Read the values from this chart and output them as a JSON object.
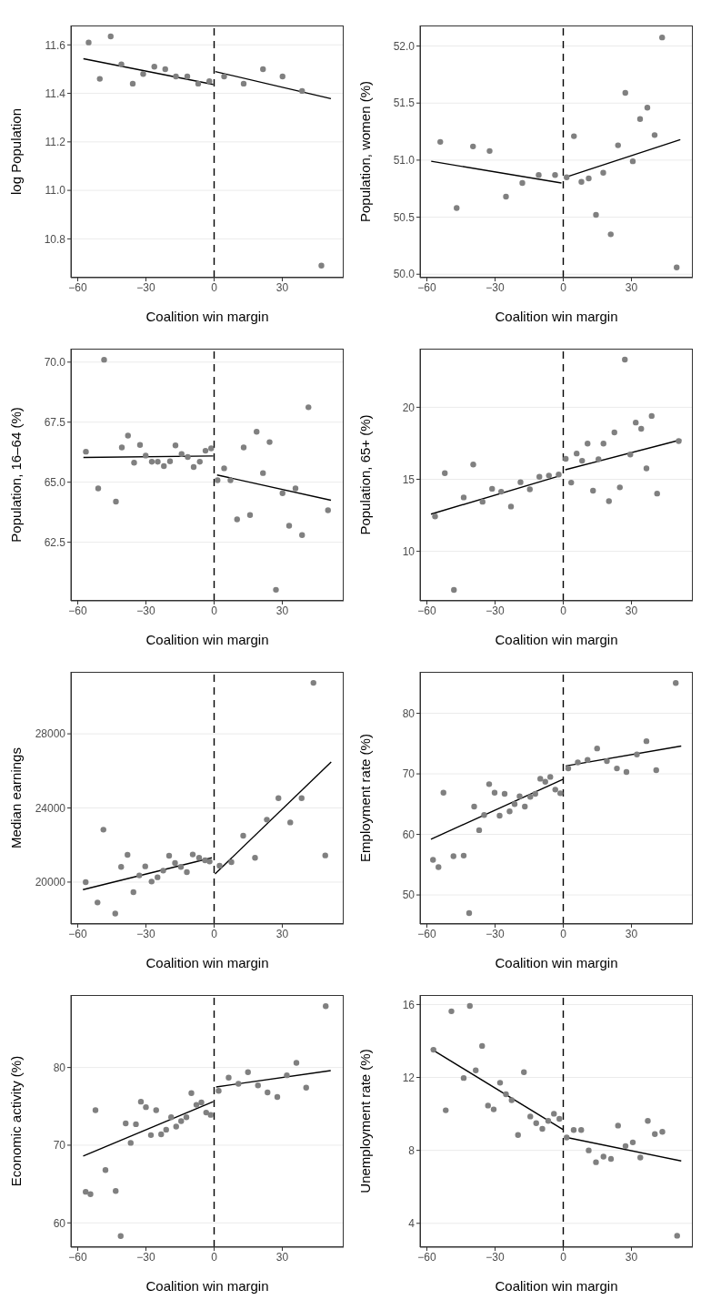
{
  "chart_data": [
    {
      "type": "scatter",
      "xlabel": "Coalition win margin",
      "ylabel": "log Population",
      "xlim": [
        -63,
        57
      ],
      "xticks": [
        -60,
        -30,
        0,
        30
      ],
      "ylim": [
        10.64,
        11.68
      ],
      "yticks": [
        10.8,
        {
          "value": 11,
          "label": "11.0"
        },
        11.2,
        11.4,
        11.6
      ],
      "grid": "y",
      "ref_lines": [
        {
          "axis": "x",
          "value": 0,
          "color": "#000000",
          "line_style": "dashed"
        }
      ],
      "series": [
        {
          "type": "scatter",
          "color": "#808080",
          "x": [
            -55.2,
            -50.3,
            -45.5,
            -40.8,
            -35.8,
            -31.2,
            -26.3,
            -21.5,
            -16.8,
            -11.8,
            -7.0,
            -2.1,
            4.4,
            13.0,
            21.5,
            30.1,
            38.7,
            47.2
          ],
          "values": [
            11.61,
            11.46,
            11.635,
            11.52,
            11.44,
            11.48,
            11.51,
            11.5,
            11.47,
            11.47,
            11.44,
            11.45,
            11.47,
            11.44,
            11.5,
            11.47,
            11.41,
            10.69
          ]
        },
        {
          "type": "line",
          "color": "#000000",
          "x": [
            -57.5,
            -0.4
          ],
          "values": [
            11.543,
            11.437
          ]
        },
        {
          "type": "line",
          "color": "#000000",
          "x": [
            0.5,
            51.4
          ],
          "values": [
            11.49,
            11.378
          ]
        }
      ]
    },
    {
      "type": "scatter",
      "xlabel": "Coalition win margin",
      "ylabel": "Population, women (%)",
      "xlim": [
        -63,
        57
      ],
      "xticks": [
        -60,
        -30,
        0,
        30
      ],
      "ylim": [
        49.97,
        52.18
      ],
      "yticks": [
        {
          "value": 50,
          "label": "50.0"
        },
        50.5,
        {
          "value": 51,
          "label": "51.0"
        },
        51.5,
        {
          "value": 52,
          "label": "52.0"
        }
      ],
      "grid": "y",
      "ref_lines": [
        {
          "axis": "x",
          "value": 0,
          "color": "#000000",
          "line_style": "dashed"
        }
      ],
      "series": [
        {
          "type": "scatter",
          "color": "#808080",
          "x": [
            -54.1,
            -46.9,
            -39.7,
            -32.4,
            -25.2,
            -18.0,
            -10.8,
            -3.6,
            1.5,
            4.7,
            8.0,
            11.2,
            14.4,
            17.6,
            20.9,
            24.1,
            27.3,
            30.6,
            33.8,
            37.0,
            40.2,
            43.5,
            49.9
          ],
          "values": [
            51.16,
            50.58,
            51.12,
            51.08,
            50.68,
            50.8,
            50.87,
            50.87,
            50.85,
            51.21,
            50.81,
            50.84,
            50.52,
            50.89,
            50.35,
            51.13,
            51.59,
            50.99,
            51.36,
            51.46,
            51.22,
            52.075,
            50.06
          ]
        },
        {
          "type": "line",
          "color": "#000000",
          "x": [
            -58.1,
            -0.8
          ],
          "values": [
            50.99,
            50.8
          ]
        },
        {
          "type": "line",
          "color": "#000000",
          "x": [
            1.1,
            51.5
          ],
          "values": [
            50.85,
            51.18
          ]
        }
      ]
    },
    {
      "type": "scatter",
      "xlabel": "Coalition win margin",
      "ylabel": "Population, 16–64 (%)",
      "xlim": [
        -63,
        57
      ],
      "xticks": [
        -60,
        -30,
        0,
        30
      ],
      "ylim": [
        60.06,
        70.56
      ],
      "yticks": [
        62.5,
        {
          "value": 65,
          "label": "65.0"
        },
        67.5,
        {
          "value": 70,
          "label": "70.0"
        }
      ],
      "grid": "y",
      "ref_lines": [
        {
          "axis": "x",
          "value": 0,
          "color": "#000000",
          "line_style": "dashed"
        }
      ],
      "series": [
        {
          "type": "scatter",
          "color": "#808080",
          "x": [
            -56.4,
            -51.0,
            -48.4,
            -43.2,
            -40.6,
            -37.9,
            -35.2,
            -32.6,
            -30.1,
            -27.4,
            -24.8,
            -22.1,
            -19.4,
            -17.0,
            -14.3,
            -11.6,
            -9.0,
            -6.3,
            -3.8,
            -1.3,
            1.5,
            4.4,
            7.2,
            10.1,
            13.0,
            15.8,
            18.7,
            21.5,
            24.4,
            27.2,
            30.1,
            33.0,
            35.8,
            38.7,
            41.5,
            50.1
          ],
          "values": [
            66.27,
            64.74,
            70.1,
            64.19,
            66.45,
            66.94,
            65.81,
            66.55,
            66.11,
            65.85,
            65.85,
            65.67,
            65.87,
            66.53,
            66.17,
            66.05,
            65.63,
            65.85,
            66.31,
            66.41,
            65.08,
            65.58,
            65.08,
            63.45,
            66.45,
            63.63,
            67.1,
            65.38,
            66.67,
            60.52,
            64.54,
            63.19,
            64.74,
            62.8,
            68.12,
            63.83
          ]
        },
        {
          "type": "line",
          "color": "#000000",
          "x": [
            -57.5,
            -0.4
          ],
          "values": [
            66.03,
            66.09
          ]
        },
        {
          "type": "line",
          "color": "#000000",
          "x": [
            1.3,
            51.4
          ],
          "values": [
            65.3,
            64.25
          ]
        }
      ]
    },
    {
      "type": "scatter",
      "xlabel": "Coalition win margin",
      "ylabel": "Population, 65+ (%)",
      "xlim": [
        -63,
        57
      ],
      "xticks": [
        -60,
        -30,
        0,
        30
      ],
      "ylim": [
        6.56,
        24.07
      ],
      "yticks": [
        10,
        15,
        20
      ],
      "grid": "y",
      "ref_lines": [
        {
          "axis": "x",
          "value": 0,
          "color": "#000000",
          "line_style": "dashed"
        }
      ],
      "series": [
        {
          "type": "scatter",
          "color": "#808080",
          "x": [
            -56.4,
            -52.1,
            -48.1,
            -43.8,
            -39.6,
            -35.5,
            -31.3,
            -27.3,
            -23.0,
            -18.8,
            -14.7,
            -10.5,
            -6.3,
            -2.0,
            1.1,
            3.5,
            5.9,
            8.3,
            10.7,
            13.1,
            15.5,
            17.7,
            20.1,
            22.5,
            24.9,
            27.1,
            29.5,
            31.9,
            34.3,
            36.6,
            38.9,
            41.3,
            50.8
          ],
          "values": [
            12.42,
            15.43,
            7.32,
            13.74,
            16.03,
            13.44,
            14.34,
            14.14,
            13.11,
            14.8,
            14.3,
            15.17,
            15.26,
            15.33,
            16.42,
            14.77,
            16.79,
            16.29,
            17.48,
            14.21,
            16.39,
            17.48,
            13.48,
            18.25,
            14.44,
            23.31,
            16.72,
            18.94,
            18.51,
            15.76,
            19.4,
            14.01,
            17.65
          ]
        },
        {
          "type": "line",
          "color": "#000000",
          "x": [
            -58.2,
            -1.1
          ],
          "values": [
            12.58,
            15.26
          ]
        },
        {
          "type": "line",
          "color": "#000000",
          "x": [
            0.9,
            51.9
          ],
          "values": [
            15.66,
            17.75
          ]
        }
      ]
    },
    {
      "type": "scatter",
      "xlabel": "Coalition win margin",
      "ylabel": "Median earnings",
      "xlim": [
        -63,
        57
      ],
      "xticks": [
        -60,
        -30,
        0,
        30
      ],
      "ylim": [
        17738,
        31344
      ],
      "yticks": [
        20000,
        24000,
        28000
      ],
      "grid": "y",
      "ref_lines": [
        {
          "axis": "x",
          "value": 0,
          "color": "#000000",
          "line_style": "dashed"
        }
      ],
      "series": [
        {
          "type": "scatter",
          "color": "#808080",
          "x": [
            -56.5,
            -51.3,
            -48.7,
            -43.5,
            -40.9,
            -38.1,
            -35.5,
            -32.9,
            -30.3,
            -27.5,
            -24.9,
            -22.4,
            -19.8,
            -17.2,
            -14.6,
            -12.0,
            -9.4,
            -6.6,
            -4.0,
            -2.0,
            2.4,
            7.6,
            12.8,
            18.0,
            23.2,
            28.3,
            33.5,
            38.5,
            43.7,
            48.9
          ],
          "values": [
            20000,
            18900,
            22830,
            18300,
            20820,
            21470,
            19460,
            20360,
            20850,
            20030,
            20260,
            20620,
            21420,
            21030,
            20820,
            20540,
            21490,
            21310,
            21180,
            21110,
            20880,
            21080,
            22500,
            21310,
            23370,
            24530,
            23220,
            24530,
            30750,
            21440
          ]
        },
        {
          "type": "line",
          "color": "#000000",
          "x": [
            -57.7,
            -1.0
          ],
          "values": [
            19590,
            21310
          ]
        },
        {
          "type": "line",
          "color": "#000000",
          "x": [
            0.4,
            51.5
          ],
          "values": [
            20440,
            26480
          ]
        }
      ]
    },
    {
      "type": "scatter",
      "xlabel": "Coalition win margin",
      "ylabel": "Employment rate (%)",
      "xlim": [
        -63,
        57
      ],
      "xticks": [
        -60,
        -30,
        0,
        30
      ],
      "ylim": [
        45.2,
        86.85
      ],
      "yticks": [
        50,
        60,
        70,
        80
      ],
      "grid": "y",
      "ref_lines": [
        {
          "axis": "x",
          "value": 0,
          "color": "#000000",
          "line_style": "dashed"
        }
      ],
      "series": [
        {
          "type": "scatter",
          "color": "#808080",
          "x": [
            -57.3,
            -54.9,
            -52.7,
            -48.3,
            -43.8,
            -41.4,
            -39.2,
            -37.0,
            -34.8,
            -32.6,
            -30.2,
            -28.0,
            -25.8,
            -23.6,
            -21.4,
            -19.2,
            -16.9,
            -14.5,
            -12.3,
            -10.1,
            -7.9,
            -5.7,
            -3.5,
            -1.3,
            2.2,
            6.4,
            10.7,
            14.9,
            19.2,
            23.6,
            27.8,
            32.4,
            36.6,
            40.9,
            49.5
          ],
          "values": [
            55.8,
            54.6,
            66.9,
            56.4,
            56.5,
            47.0,
            64.6,
            60.7,
            63.2,
            68.3,
            66.9,
            63.1,
            66.7,
            63.8,
            65.0,
            66.3,
            64.6,
            66.2,
            66.7,
            69.2,
            68.7,
            69.5,
            67.4,
            66.8,
            70.9,
            71.9,
            72.3,
            74.2,
            72.1,
            70.9,
            70.3,
            73.2,
            75.4,
            70.6,
            85.0
          ]
        },
        {
          "type": "line",
          "color": "#000000",
          "x": [
            -58.2,
            -0.2
          ],
          "values": [
            59.2,
            69.1
          ]
        },
        {
          "type": "line",
          "color": "#000000",
          "x": [
            1.1,
            51.9
          ],
          "values": [
            71.3,
            74.6
          ]
        }
      ]
    },
    {
      "type": "scatter",
      "xlabel": "Coalition win margin",
      "ylabel": "Economic activity (%)",
      "xlim": [
        -63,
        57
      ],
      "xticks": [
        -60,
        -30,
        0,
        30
      ],
      "ylim": [
        56.87,
        89.33
      ],
      "yticks": [
        60,
        70,
        80
      ],
      "grid": "y",
      "ref_lines": [
        {
          "axis": "x",
          "value": 0,
          "color": "#000000",
          "line_style": "dashed"
        }
      ],
      "series": [
        {
          "type": "scatter",
          "color": "#808080",
          "x": [
            -56.5,
            -54.4,
            -52.2,
            -47.8,
            -43.3,
            -41.1,
            -38.9,
            -36.7,
            -34.4,
            -32.2,
            -30.0,
            -27.8,
            -25.5,
            -23.3,
            -21.1,
            -18.9,
            -16.7,
            -14.5,
            -12.2,
            -10.0,
            -7.8,
            -5.6,
            -3.5,
            -1.5,
            2.0,
            6.4,
            10.7,
            14.9,
            19.3,
            23.5,
            27.8,
            32.0,
            36.2,
            40.5,
            49.1
          ],
          "values": [
            64.0,
            63.7,
            74.5,
            66.8,
            64.1,
            58.3,
            72.8,
            70.3,
            72.7,
            75.6,
            74.9,
            71.3,
            74.5,
            71.4,
            72.0,
            73.6,
            72.4,
            73.1,
            73.6,
            76.7,
            75.2,
            75.5,
            74.2,
            73.9,
            77.0,
            78.7,
            77.9,
            79.4,
            77.7,
            76.8,
            76.2,
            79.0,
            80.6,
            77.4,
            87.9
          ]
        },
        {
          "type": "line",
          "color": "#000000",
          "x": [
            -57.6,
            -0.4
          ],
          "values": [
            68.6,
            75.6
          ]
        },
        {
          "type": "line",
          "color": "#000000",
          "x": [
            0.9,
            51.3
          ],
          "values": [
            77.5,
            79.6
          ]
        }
      ]
    },
    {
      "type": "scatter",
      "xlabel": "Coalition win margin",
      "ylabel": "Unemployment rate (%)",
      "xlim": [
        -63,
        57
      ],
      "xticks": [
        -60,
        -30,
        0,
        30
      ],
      "ylim": [
        2.69,
        16.52
      ],
      "yticks": [
        4,
        8,
        12,
        16
      ],
      "grid": "y",
      "ref_lines": [
        {
          "axis": "x",
          "value": 0,
          "color": "#000000",
          "line_style": "dashed"
        }
      ],
      "series": [
        {
          "type": "scatter",
          "color": "#808080",
          "x": [
            -57.1,
            -51.7,
            -49.2,
            -43.8,
            -41.1,
            -38.5,
            -35.7,
            -33.1,
            -30.6,
            -27.8,
            -25.2,
            -22.7,
            -19.9,
            -17.3,
            -14.5,
            -11.9,
            -9.2,
            -6.6,
            -4.1,
            -1.7,
            1.5,
            4.6,
            7.9,
            11.2,
            14.4,
            17.7,
            21.0,
            24.1,
            27.4,
            30.6,
            33.9,
            37.2,
            40.3,
            43.6,
            50.1
          ],
          "values": [
            13.52,
            10.2,
            15.63,
            11.97,
            15.92,
            12.39,
            13.73,
            10.46,
            10.25,
            11.71,
            11.08,
            10.75,
            8.84,
            12.29,
            9.86,
            9.49,
            9.18,
            9.62,
            10.01,
            9.73,
            8.71,
            9.12,
            9.12,
            8.0,
            7.35,
            7.66,
            7.53,
            9.36,
            8.24,
            8.44,
            7.61,
            9.62,
            8.89,
            9.02,
            3.32
          ]
        },
        {
          "type": "line",
          "color": "#000000",
          "x": [
            -58.2,
            -0.2
          ],
          "values": [
            13.57,
            9.15
          ]
        },
        {
          "type": "line",
          "color": "#000000",
          "x": [
            0.6,
            51.9
          ],
          "values": [
            8.73,
            7.42
          ]
        }
      ]
    }
  ]
}
